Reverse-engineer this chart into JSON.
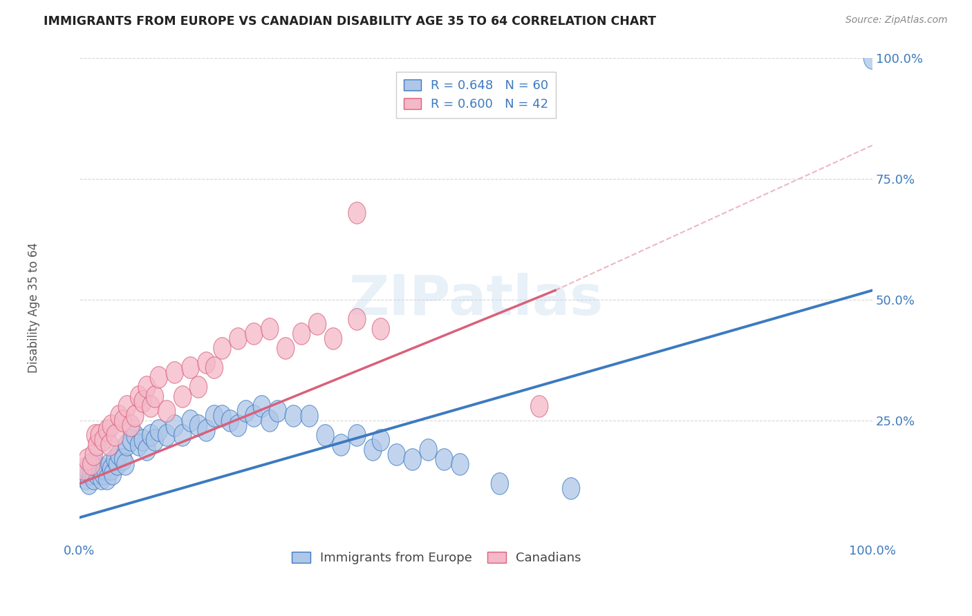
{
  "title": "IMMIGRANTS FROM EUROPE VS CANADIAN DISABILITY AGE 35 TO 64 CORRELATION CHART",
  "source": "Source: ZipAtlas.com",
  "ylabel": "Disability Age 35 to 64",
  "xlim": [
    0,
    1
  ],
  "ylim": [
    0,
    1
  ],
  "xtick_positions": [
    0.0,
    0.25,
    0.5,
    0.75,
    1.0
  ],
  "xtick_labels": [
    "0.0%",
    "",
    "",
    "",
    "100.0%"
  ],
  "ytick_positions": [
    0.0,
    0.25,
    0.5,
    0.75,
    1.0
  ],
  "ytick_labels_right": [
    "",
    "25.0%",
    "50.0%",
    "75.0%",
    "100.0%"
  ],
  "legend_r_entries": [
    {
      "label": "R = 0.648   N = 60",
      "fc": "#aec6e8",
      "ec": "#5b9bd5"
    },
    {
      "label": "R = 0.600   N = 42",
      "fc": "#f4b8c8",
      "ec": "#e8698a"
    }
  ],
  "blue_scatter": [
    [
      0.005,
      0.14
    ],
    [
      0.008,
      0.13
    ],
    [
      0.01,
      0.15
    ],
    [
      0.012,
      0.12
    ],
    [
      0.015,
      0.14
    ],
    [
      0.018,
      0.13
    ],
    [
      0.02,
      0.16
    ],
    [
      0.022,
      0.14
    ],
    [
      0.025,
      0.15
    ],
    [
      0.028,
      0.13
    ],
    [
      0.03,
      0.14
    ],
    [
      0.032,
      0.15
    ],
    [
      0.035,
      0.13
    ],
    [
      0.038,
      0.16
    ],
    [
      0.04,
      0.15
    ],
    [
      0.042,
      0.14
    ],
    [
      0.045,
      0.17
    ],
    [
      0.048,
      0.16
    ],
    [
      0.05,
      0.18
    ],
    [
      0.055,
      0.17
    ],
    [
      0.058,
      0.16
    ],
    [
      0.06,
      0.2
    ],
    [
      0.065,
      0.21
    ],
    [
      0.07,
      0.22
    ],
    [
      0.075,
      0.2
    ],
    [
      0.08,
      0.21
    ],
    [
      0.085,
      0.19
    ],
    [
      0.09,
      0.22
    ],
    [
      0.095,
      0.21
    ],
    [
      0.1,
      0.23
    ],
    [
      0.11,
      0.22
    ],
    [
      0.12,
      0.24
    ],
    [
      0.13,
      0.22
    ],
    [
      0.14,
      0.25
    ],
    [
      0.15,
      0.24
    ],
    [
      0.16,
      0.23
    ],
    [
      0.17,
      0.26
    ],
    [
      0.18,
      0.26
    ],
    [
      0.19,
      0.25
    ],
    [
      0.2,
      0.24
    ],
    [
      0.21,
      0.27
    ],
    [
      0.22,
      0.26
    ],
    [
      0.23,
      0.28
    ],
    [
      0.24,
      0.25
    ],
    [
      0.25,
      0.27
    ],
    [
      0.27,
      0.26
    ],
    [
      0.29,
      0.26
    ],
    [
      0.31,
      0.22
    ],
    [
      0.33,
      0.2
    ],
    [
      0.35,
      0.22
    ],
    [
      0.37,
      0.19
    ],
    [
      0.38,
      0.21
    ],
    [
      0.4,
      0.18
    ],
    [
      0.42,
      0.17
    ],
    [
      0.44,
      0.19
    ],
    [
      0.46,
      0.17
    ],
    [
      0.48,
      0.16
    ],
    [
      0.53,
      0.12
    ],
    [
      0.62,
      0.11
    ],
    [
      1.0,
      1.0
    ]
  ],
  "pink_scatter": [
    [
      0.005,
      0.15
    ],
    [
      0.01,
      0.17
    ],
    [
      0.015,
      0.16
    ],
    [
      0.018,
      0.18
    ],
    [
      0.02,
      0.22
    ],
    [
      0.022,
      0.2
    ],
    [
      0.025,
      0.22
    ],
    [
      0.03,
      0.21
    ],
    [
      0.035,
      0.23
    ],
    [
      0.038,
      0.2
    ],
    [
      0.04,
      0.24
    ],
    [
      0.045,
      0.22
    ],
    [
      0.05,
      0.26
    ],
    [
      0.055,
      0.25
    ],
    [
      0.06,
      0.28
    ],
    [
      0.065,
      0.24
    ],
    [
      0.07,
      0.26
    ],
    [
      0.075,
      0.3
    ],
    [
      0.08,
      0.29
    ],
    [
      0.085,
      0.32
    ],
    [
      0.09,
      0.28
    ],
    [
      0.095,
      0.3
    ],
    [
      0.1,
      0.34
    ],
    [
      0.11,
      0.27
    ],
    [
      0.12,
      0.35
    ],
    [
      0.13,
      0.3
    ],
    [
      0.14,
      0.36
    ],
    [
      0.15,
      0.32
    ],
    [
      0.16,
      0.37
    ],
    [
      0.17,
      0.36
    ],
    [
      0.18,
      0.4
    ],
    [
      0.2,
      0.42
    ],
    [
      0.22,
      0.43
    ],
    [
      0.24,
      0.44
    ],
    [
      0.26,
      0.4
    ],
    [
      0.28,
      0.43
    ],
    [
      0.3,
      0.45
    ],
    [
      0.32,
      0.42
    ],
    [
      0.35,
      0.46
    ],
    [
      0.38,
      0.44
    ],
    [
      0.58,
      0.28
    ],
    [
      0.35,
      0.68
    ]
  ],
  "blue_line_x": [
    0.0,
    1.0
  ],
  "blue_line_y": [
    0.05,
    0.52
  ],
  "pink_line_x": [
    0.0,
    0.6
  ],
  "pink_line_y": [
    0.12,
    0.52
  ],
  "dashed_line_x": [
    0.6,
    1.0
  ],
  "dashed_line_y": [
    0.52,
    0.82
  ],
  "blue_color": "#3d7abf",
  "pink_color": "#d9607a",
  "blue_fc": "#aec6e8",
  "pink_fc": "#f4b8c8",
  "watermark_text": "ZIPatlas",
  "bg_color": "#ffffff",
  "grid_color": "#cccccc"
}
